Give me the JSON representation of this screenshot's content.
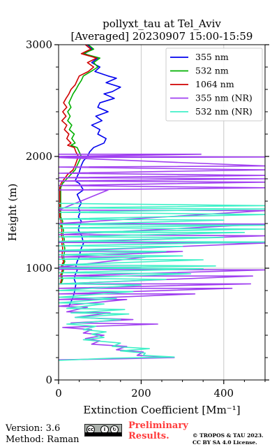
{
  "chart_data": {
    "type": "line",
    "title_line1": "pollyxt_tau at Tel_Aviv",
    "title_line2": "[Averaged] 20230907 15:00-15:59",
    "xlabel": "Extinction Coefficient [Mm⁻¹]",
    "ylabel": "Height (m)",
    "xlim": [
      0,
      500
    ],
    "ylim": [
      0,
      3000
    ],
    "xticks": [
      0,
      200,
      400
    ],
    "yticks": [
      0,
      1000,
      2000,
      3000
    ],
    "grid": true,
    "legend_position": "top-right",
    "series": [
      {
        "name": "355 nm",
        "color": "#0000ee",
        "points": [
          [
            70,
            3000
          ],
          [
            82,
            2960
          ],
          [
            62,
            2920
          ],
          [
            95,
            2880
          ],
          [
            80,
            2840
          ],
          [
            100,
            2800
          ],
          [
            88,
            2760
          ],
          [
            120,
            2720
          ],
          [
            140,
            2700
          ],
          [
            115,
            2660
          ],
          [
            150,
            2620
          ],
          [
            130,
            2580
          ],
          [
            110,
            2560
          ],
          [
            135,
            2520
          ],
          [
            100,
            2480
          ],
          [
            95,
            2440
          ],
          [
            120,
            2400
          ],
          [
            90,
            2360
          ],
          [
            105,
            2320
          ],
          [
            80,
            2280
          ],
          [
            100,
            2240
          ],
          [
            95,
            2200
          ],
          [
            115,
            2160
          ],
          [
            110,
            2120
          ],
          [
            85,
            2080
          ],
          [
            75,
            2040
          ],
          [
            70,
            2000
          ],
          [
            60,
            1960
          ],
          [
            55,
            1920
          ],
          [
            50,
            1860
          ],
          [
            45,
            1820
          ],
          [
            40,
            1780
          ],
          [
            50,
            1760
          ],
          [
            55,
            1730
          ],
          [
            60,
            1700
          ],
          [
            45,
            1660
          ],
          [
            50,
            1620
          ],
          [
            55,
            1580
          ],
          [
            48,
            1540
          ],
          [
            52,
            1500
          ],
          [
            48,
            1460
          ],
          [
            55,
            1420
          ],
          [
            50,
            1380
          ],
          [
            48,
            1340
          ],
          [
            55,
            1300
          ],
          [
            58,
            1260
          ],
          [
            60,
            1220
          ],
          [
            55,
            1180
          ],
          [
            52,
            1140
          ],
          [
            50,
            1100
          ],
          [
            45,
            1060
          ],
          [
            42,
            1020
          ],
          [
            45,
            980
          ],
          [
            40,
            940
          ],
          [
            38,
            900
          ],
          [
            42,
            860
          ],
          [
            40,
            820
          ],
          [
            38,
            780
          ],
          [
            35,
            740
          ],
          [
            30,
            700
          ],
          [
            25,
            660
          ]
        ]
      },
      {
        "name": "532 nm",
        "color": "#00b000",
        "points": [
          [
            72,
            3000
          ],
          [
            85,
            2960
          ],
          [
            60,
            2920
          ],
          [
            100,
            2880
          ],
          [
            85,
            2840
          ],
          [
            95,
            2800
          ],
          [
            78,
            2760
          ],
          [
            60,
            2720
          ],
          [
            55,
            2680
          ],
          [
            48,
            2640
          ],
          [
            42,
            2600
          ],
          [
            35,
            2560
          ],
          [
            30,
            2520
          ],
          [
            25,
            2480
          ],
          [
            30,
            2440
          ],
          [
            22,
            2400
          ],
          [
            28,
            2360
          ],
          [
            22,
            2320
          ],
          [
            32,
            2280
          ],
          [
            26,
            2240
          ],
          [
            38,
            2200
          ],
          [
            32,
            2160
          ],
          [
            40,
            2120
          ],
          [
            30,
            2100
          ],
          [
            45,
            2080
          ],
          [
            50,
            2040
          ],
          [
            55,
            2000
          ],
          [
            50,
            1960
          ],
          [
            45,
            1920
          ],
          [
            40,
            1880
          ],
          [
            30,
            1840
          ],
          [
            20,
            1800
          ],
          [
            10,
            1760
          ],
          [
            5,
            1720
          ],
          [
            5,
            1460
          ],
          [
            10,
            1420
          ],
          [
            8,
            1380
          ],
          [
            12,
            1340
          ],
          [
            10,
            1300
          ],
          [
            14,
            1260
          ],
          [
            12,
            1220
          ],
          [
            15,
            1180
          ],
          [
            14,
            1140
          ],
          [
            12,
            1100
          ],
          [
            15,
            1060
          ],
          [
            10,
            1020
          ],
          [
            12,
            980
          ],
          [
            8,
            940
          ],
          [
            10,
            900
          ],
          [
            6,
            860
          ]
        ]
      },
      {
        "name": "1064 nm",
        "color": "#d00000",
        "points": [
          [
            65,
            3000
          ],
          [
            78,
            2960
          ],
          [
            55,
            2920
          ],
          [
            92,
            2880
          ],
          [
            70,
            2840
          ],
          [
            85,
            2800
          ],
          [
            72,
            2760
          ],
          [
            50,
            2720
          ],
          [
            45,
            2680
          ],
          [
            40,
            2640
          ],
          [
            30,
            2600
          ],
          [
            25,
            2560
          ],
          [
            18,
            2520
          ],
          [
            12,
            2480
          ],
          [
            20,
            2440
          ],
          [
            10,
            2400
          ],
          [
            18,
            2360
          ],
          [
            8,
            2320
          ],
          [
            20,
            2280
          ],
          [
            14,
            2240
          ],
          [
            25,
            2200
          ],
          [
            20,
            2160
          ],
          [
            30,
            2120
          ],
          [
            22,
            2100
          ],
          [
            38,
            2080
          ],
          [
            42,
            2040
          ],
          [
            48,
            2000
          ],
          [
            44,
            1960
          ],
          [
            40,
            1920
          ],
          [
            35,
            1880
          ],
          [
            22,
            1840
          ],
          [
            14,
            1800
          ],
          [
            6,
            1760
          ],
          [
            3,
            1720
          ],
          [
            3,
            1460
          ],
          [
            6,
            1420
          ],
          [
            5,
            1380
          ],
          [
            8,
            1340
          ],
          [
            6,
            1300
          ],
          [
            10,
            1260
          ],
          [
            8,
            1220
          ],
          [
            10,
            1180
          ],
          [
            9,
            1140
          ],
          [
            8,
            1100
          ],
          [
            12,
            1060
          ],
          [
            7,
            1020
          ],
          [
            9,
            980
          ],
          [
            5,
            940
          ],
          [
            7,
            900
          ],
          [
            4,
            860
          ]
        ]
      },
      {
        "name": "355 nm (NR)",
        "color": "#a040f0",
        "points": [
          [
            0,
            2020
          ],
          [
            345,
            2020
          ],
          [
            0,
            2000
          ],
          [
            500,
            1995
          ],
          [
            0,
            1990
          ],
          [
            500,
            1915
          ],
          [
            0,
            1905
          ],
          [
            500,
            1880
          ],
          [
            0,
            1850
          ],
          [
            500,
            1830
          ],
          [
            0,
            1810
          ],
          [
            500,
            1800
          ],
          [
            0,
            1780
          ],
          [
            500,
            1770
          ],
          [
            0,
            1740
          ],
          [
            500,
            1720
          ],
          [
            0,
            1700
          ],
          [
            120,
            1700
          ],
          [
            0,
            1520
          ],
          [
            500,
            1515
          ],
          [
            0,
            1400
          ],
          [
            500,
            1395
          ],
          [
            0,
            1300
          ],
          [
            500,
            1290
          ],
          [
            0,
            1230
          ],
          [
            500,
            1225
          ],
          [
            0,
            1150
          ],
          [
            300,
            1150
          ],
          [
            0,
            1100
          ],
          [
            210,
            1100
          ],
          [
            0,
            1010
          ],
          [
            200,
            1010
          ],
          [
            0,
            990
          ],
          [
            500,
            985
          ],
          [
            0,
            930
          ],
          [
            470,
            930
          ],
          [
            0,
            860
          ],
          [
            465,
            860
          ],
          [
            0,
            820
          ],
          [
            420,
            820
          ],
          [
            0,
            770
          ],
          [
            330,
            770
          ],
          [
            0,
            720
          ],
          [
            165,
            720
          ],
          [
            0,
            660
          ],
          [
            70,
            650
          ],
          [
            20,
            610
          ],
          [
            125,
            600
          ],
          [
            40,
            560
          ],
          [
            180,
            540
          ],
          [
            30,
            510
          ],
          [
            240,
            500
          ],
          [
            10,
            470
          ],
          [
            80,
            450
          ],
          [
            60,
            420
          ],
          [
            110,
            400
          ],
          [
            65,
            370
          ],
          [
            100,
            350
          ],
          [
            80,
            320
          ],
          [
            165,
            300
          ],
          [
            140,
            270
          ],
          [
            205,
            250
          ],
          [
            190,
            220
          ],
          [
            280,
            200
          ],
          [
            160,
            190
          ],
          [
            0,
            180
          ]
        ]
      },
      {
        "name": "532 nm (NR)",
        "color": "#40f0c8",
        "points": [
          [
            0,
            1580
          ],
          [
            500,
            1560
          ],
          [
            0,
            1540
          ],
          [
            500,
            1530
          ],
          [
            0,
            1500
          ],
          [
            500,
            1480
          ],
          [
            0,
            1440
          ],
          [
            400,
            1430
          ],
          [
            0,
            1390
          ],
          [
            500,
            1385
          ],
          [
            0,
            1360
          ],
          [
            500,
            1350
          ],
          [
            0,
            1320
          ],
          [
            450,
            1320
          ],
          [
            0,
            1280
          ],
          [
            400,
            1275
          ],
          [
            0,
            1240
          ],
          [
            500,
            1235
          ],
          [
            0,
            1200
          ],
          [
            300,
            1195
          ],
          [
            0,
            1160
          ],
          [
            260,
            1150
          ],
          [
            0,
            1120
          ],
          [
            300,
            1110
          ],
          [
            0,
            1080
          ],
          [
            350,
            1075
          ],
          [
            0,
            1030
          ],
          [
            380,
            1020
          ],
          [
            0,
            1000
          ],
          [
            350,
            995
          ],
          [
            0,
            960
          ],
          [
            320,
            950
          ],
          [
            0,
            910
          ],
          [
            260,
            900
          ],
          [
            0,
            860
          ],
          [
            200,
            850
          ],
          [
            0,
            800
          ],
          [
            180,
            790
          ],
          [
            0,
            740
          ],
          [
            140,
            730
          ],
          [
            0,
            690
          ],
          [
            110,
            680
          ],
          [
            20,
            640
          ],
          [
            160,
            630
          ],
          [
            30,
            600
          ],
          [
            170,
            590
          ],
          [
            40,
            560
          ],
          [
            150,
            540
          ],
          [
            20,
            500
          ],
          [
            90,
            480
          ],
          [
            60,
            450
          ],
          [
            115,
            430
          ],
          [
            80,
            410
          ],
          [
            110,
            380
          ],
          [
            60,
            360
          ],
          [
            150,
            330
          ],
          [
            130,
            300
          ],
          [
            220,
            280
          ],
          [
            150,
            260
          ],
          [
            210,
            240
          ],
          [
            205,
            220
          ],
          [
            280,
            205
          ],
          [
            130,
            195
          ],
          [
            0,
            175
          ]
        ]
      }
    ]
  },
  "footer": {
    "version": "Version: 3.6",
    "method": "Method: Raman",
    "preliminary_line1": "Preliminary",
    "preliminary_line2": "Results.",
    "copyright_line1": "© TROPOS & TAU 2023.",
    "copyright_line2": "CC BY SA 4.0 License.",
    "license_icons": [
      "cc",
      "by",
      "sa"
    ],
    "license_caption": "BY  SA"
  }
}
